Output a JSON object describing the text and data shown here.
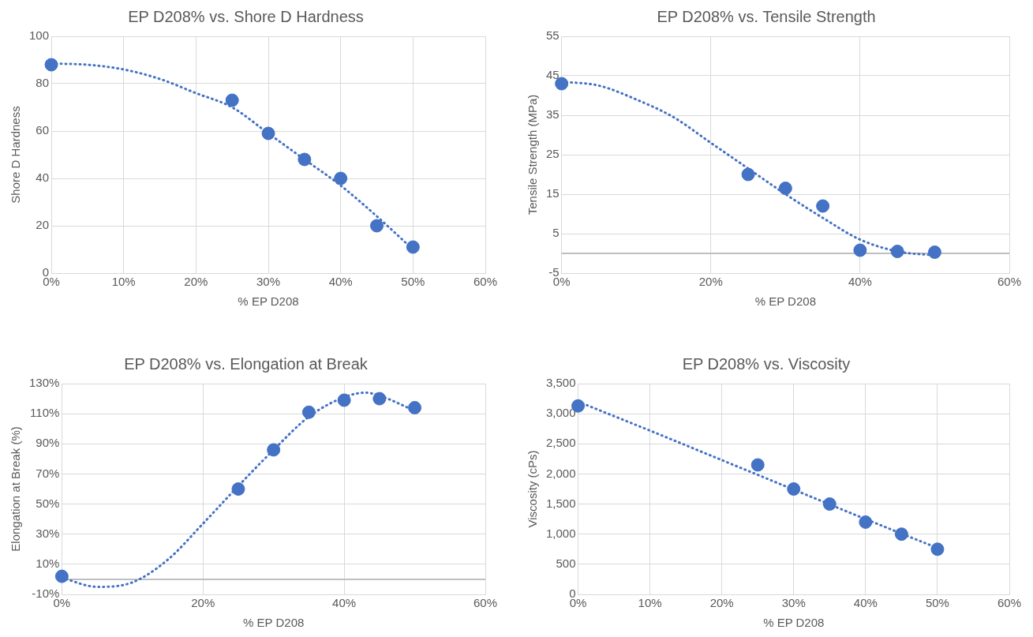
{
  "chart_data": [
    {
      "type": "scatter",
      "title": "EP D208% vs. Shore D Hardness",
      "xlabel": "% EP D208",
      "ylabel": "Shore D Hardness",
      "grid": true,
      "legend": false,
      "xlim": [
        0,
        60
      ],
      "xticks": [
        {
          "value": 0,
          "label": "0%"
        },
        {
          "value": 10,
          "label": "10%"
        },
        {
          "value": 20,
          "label": "20%"
        },
        {
          "value": 30,
          "label": "30%"
        },
        {
          "value": 40,
          "label": "40%"
        },
        {
          "value": 50,
          "label": "50%"
        },
        {
          "value": 60,
          "label": "60%"
        }
      ],
      "ylim": [
        0,
        100
      ],
      "yticks": [
        0,
        20,
        40,
        60,
        80,
        100
      ],
      "series": [
        {
          "type": "scatter",
          "color": "#4472c4",
          "marker": "circle",
          "x": [
            0,
            25,
            30,
            35,
            40,
            45,
            50
          ],
          "values": [
            88,
            73,
            59,
            48,
            40,
            20,
            11
          ]
        },
        {
          "type": "line",
          "color": "#4472c4",
          "marker": "none",
          "line_style": "dotted",
          "x": [
            0,
            5,
            10,
            15,
            20,
            25,
            30,
            35,
            40,
            45,
            50
          ],
          "values": [
            88.5,
            88,
            86,
            82,
            76,
            70,
            59,
            48,
            37,
            24,
            10
          ]
        }
      ]
    },
    {
      "type": "scatter",
      "title": "EP D208% vs. Tensile Strength",
      "xlabel": "% EP D208",
      "ylabel": "Tensile Strength (MPa)",
      "grid": true,
      "legend": false,
      "xlim": [
        0,
        60
      ],
      "xticks": [
        {
          "value": 0,
          "label": "0%"
        },
        {
          "value": 20,
          "label": "20%"
        },
        {
          "value": 40,
          "label": "40%"
        },
        {
          "value": 60,
          "label": "60%"
        }
      ],
      "ylim": [
        -5,
        55
      ],
      "yticks": [
        -5,
        5,
        15,
        25,
        35,
        45,
        55
      ],
      "series": [
        {
          "type": "scatter",
          "color": "#4472c4",
          "marker": "circle",
          "x": [
            0,
            25,
            30,
            35,
            40,
            45,
            50
          ],
          "values": [
            43,
            20,
            16.5,
            12,
            0.8,
            0.5,
            0.3
          ]
        },
        {
          "type": "line",
          "color": "#4472c4",
          "marker": "none",
          "line_style": "dotted",
          "x": [
            0,
            5,
            10,
            15,
            20,
            25,
            30,
            35,
            40,
            45,
            50
          ],
          "values": [
            43.5,
            42.5,
            39,
            34.5,
            28,
            21.5,
            15,
            9,
            3.5,
            0.5,
            -0.5
          ]
        }
      ]
    },
    {
      "type": "scatter",
      "title": "EP D208% vs. Elongation at Break",
      "xlabel": "% EP D208",
      "ylabel": "Elongation at Break (%)",
      "grid": true,
      "legend": false,
      "xlim": [
        0,
        60
      ],
      "xticks": [
        {
          "value": 0,
          "label": "0%"
        },
        {
          "value": 20,
          "label": "20%"
        },
        {
          "value": 40,
          "label": "40%"
        },
        {
          "value": 60,
          "label": "60%"
        }
      ],
      "ylim": [
        -10,
        130
      ],
      "yticks": [
        {
          "value": -10,
          "label": "-10%"
        },
        {
          "value": 10,
          "label": "10%"
        },
        {
          "value": 30,
          "label": "30%"
        },
        {
          "value": 50,
          "label": "50%"
        },
        {
          "value": 70,
          "label": "70%"
        },
        {
          "value": 90,
          "label": "90%"
        },
        {
          "value": 110,
          "label": "110%"
        },
        {
          "value": 130,
          "label": "130%"
        }
      ],
      "series": [
        {
          "type": "scatter",
          "color": "#4472c4",
          "marker": "circle",
          "x": [
            0,
            25,
            30,
            35,
            40,
            45,
            50
          ],
          "values": [
            2,
            60,
            86,
            111,
            119,
            120,
            114
          ]
        },
        {
          "type": "line",
          "color": "#4472c4",
          "marker": "none",
          "line_style": "dotted",
          "x": [
            0,
            5,
            10,
            15,
            20,
            25,
            30,
            35,
            40,
            43,
            45,
            50
          ],
          "values": [
            1,
            -5,
            -2,
            13,
            37,
            62,
            86,
            108,
            121,
            124,
            122,
            112
          ]
        }
      ]
    },
    {
      "type": "scatter",
      "title": "EP D208% vs. Viscosity",
      "xlabel": "% EP D208",
      "ylabel": "Viscosity (cPs)",
      "grid": true,
      "legend": false,
      "xlim": [
        0,
        60
      ],
      "xticks": [
        {
          "value": 0,
          "label": "0%"
        },
        {
          "value": 10,
          "label": "10%"
        },
        {
          "value": 20,
          "label": "20%"
        },
        {
          "value": 30,
          "label": "30%"
        },
        {
          "value": 40,
          "label": "40%"
        },
        {
          "value": 50,
          "label": "50%"
        },
        {
          "value": 60,
          "label": "60%"
        }
      ],
      "ylim": [
        0,
        3500
      ],
      "yticks": [
        0,
        {
          "value": 500,
          "label": "500"
        },
        {
          "value": 1000,
          "label": "1,000"
        },
        {
          "value": 1500,
          "label": "1,500"
        },
        {
          "value": 2000,
          "label": "2,000"
        },
        {
          "value": 2500,
          "label": "2,500"
        },
        {
          "value": 3000,
          "label": "3,000"
        },
        {
          "value": 3500,
          "label": "3,500"
        }
      ],
      "series": [
        {
          "type": "scatter",
          "color": "#4472c4",
          "marker": "circle",
          "x": [
            0,
            25,
            30,
            35,
            40,
            45,
            50
          ],
          "values": [
            3130,
            2150,
            1750,
            1500,
            1200,
            1000,
            750
          ]
        },
        {
          "type": "line",
          "color": "#4472c4",
          "marker": "none",
          "line_style": "dotted",
          "x": [
            0,
            10,
            20,
            30,
            40,
            50
          ],
          "values": [
            3200,
            2720,
            2230,
            1740,
            1250,
            770
          ]
        }
      ]
    }
  ]
}
